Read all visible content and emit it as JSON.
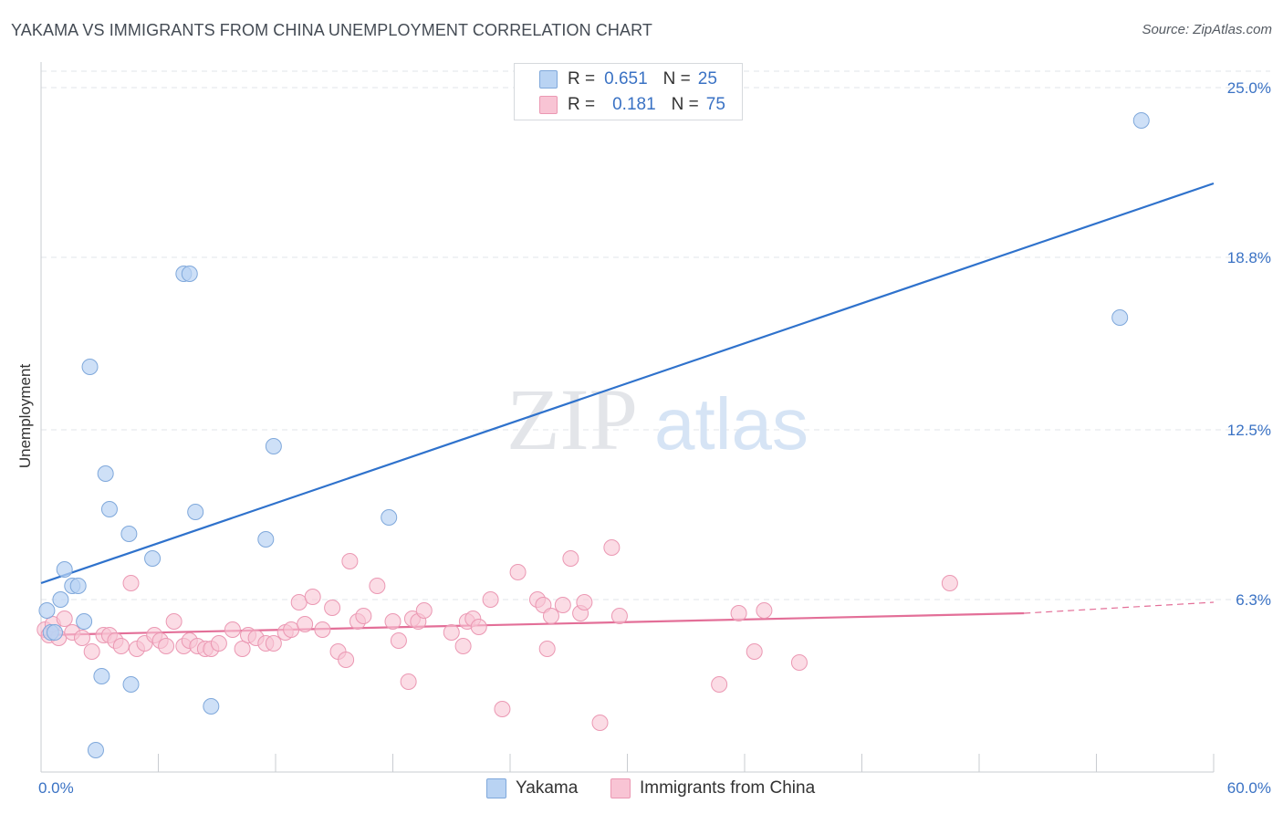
{
  "title": "YAKAMA VS IMMIGRANTS FROM CHINA UNEMPLOYMENT CORRELATION CHART",
  "source": "Source: ZipAtlas.com",
  "watermark": {
    "zip": "ZIP",
    "atlas": "atlas"
  },
  "legend": {
    "r_label": "R =",
    "n_label": "N =",
    "yakama": {
      "r": "0.651",
      "n": "25"
    },
    "china": {
      "r": "0.181",
      "n": "75"
    }
  },
  "colors": {
    "yakama_fill": "#b9d3f3",
    "yakama_stroke": "#7fa8db",
    "yakama_line": "#2f72cc",
    "china_fill": "#f8c4d4",
    "china_stroke": "#eb98b3",
    "china_line": "#e36f98",
    "axis_text": "#3a72c4",
    "grid": "#e2e4e8"
  },
  "chart_data": {
    "type": "scatter",
    "title": "YAKAMA VS IMMIGRANTS FROM CHINA UNEMPLOYMENT CORRELATION CHART",
    "xlabel": "",
    "ylabel": "Unemployment",
    "xlim": [
      0,
      60
    ],
    "ylim": [
      0,
      25.6
    ],
    "x_tick_labels": [
      "0.0%",
      "60.0%"
    ],
    "y_ticks": [
      6.3,
      12.5,
      18.8,
      25.0
    ],
    "y_tick_labels": [
      "6.3%",
      "12.5%",
      "18.8%",
      "25.0%"
    ],
    "grid": "horizontal dashed",
    "legend_position": "top-center and bottom",
    "series": [
      {
        "name": "Yakama",
        "color": "#b9d3f3",
        "points": [
          [
            0.3,
            5.9
          ],
          [
            0.5,
            5.1
          ],
          [
            0.7,
            5.1
          ],
          [
            1.0,
            6.3
          ],
          [
            1.2,
            7.4
          ],
          [
            1.6,
            6.8
          ],
          [
            1.9,
            6.8
          ],
          [
            2.2,
            5.5
          ],
          [
            2.5,
            14.8
          ],
          [
            2.8,
            0.8
          ],
          [
            3.1,
            3.5
          ],
          [
            3.3,
            10.9
          ],
          [
            3.5,
            9.6
          ],
          [
            4.5,
            8.7
          ],
          [
            4.6,
            3.2
          ],
          [
            5.7,
            7.8
          ],
          [
            7.3,
            18.2
          ],
          [
            7.6,
            18.2
          ],
          [
            7.9,
            9.5
          ],
          [
            8.7,
            2.4
          ],
          [
            11.5,
            8.5
          ],
          [
            11.9,
            11.9
          ],
          [
            17.8,
            9.3
          ],
          [
            55.2,
            16.6
          ],
          [
            56.3,
            23.8
          ]
        ],
        "trend": {
          "x": [
            0,
            60
          ],
          "y": [
            6.9,
            21.5
          ]
        }
      },
      {
        "name": "Immigrants from China",
        "color": "#f8c4d4",
        "points": [
          [
            0.2,
            5.2
          ],
          [
            0.4,
            5.0
          ],
          [
            0.6,
            5.4
          ],
          [
            0.9,
            4.9
          ],
          [
            1.2,
            5.6
          ],
          [
            1.6,
            5.1
          ],
          [
            2.1,
            4.9
          ],
          [
            2.6,
            4.4
          ],
          [
            3.2,
            5.0
          ],
          [
            3.5,
            5.0
          ],
          [
            3.8,
            4.8
          ],
          [
            4.1,
            4.6
          ],
          [
            4.6,
            6.9
          ],
          [
            4.9,
            4.5
          ],
          [
            5.3,
            4.7
          ],
          [
            5.8,
            5.0
          ],
          [
            6.1,
            4.8
          ],
          [
            6.4,
            4.6
          ],
          [
            6.8,
            5.5
          ],
          [
            7.3,
            4.6
          ],
          [
            7.6,
            4.8
          ],
          [
            8.0,
            4.6
          ],
          [
            8.4,
            4.5
          ],
          [
            8.7,
            4.5
          ],
          [
            9.1,
            4.7
          ],
          [
            9.8,
            5.2
          ],
          [
            10.3,
            4.5
          ],
          [
            10.6,
            5.0
          ],
          [
            11.0,
            4.9
          ],
          [
            11.5,
            4.7
          ],
          [
            11.9,
            4.7
          ],
          [
            12.5,
            5.1
          ],
          [
            12.8,
            5.2
          ],
          [
            13.2,
            6.2
          ],
          [
            13.5,
            5.4
          ],
          [
            13.9,
            6.4
          ],
          [
            14.4,
            5.2
          ],
          [
            14.9,
            6.0
          ],
          [
            15.2,
            4.4
          ],
          [
            15.6,
            4.1
          ],
          [
            15.8,
            7.7
          ],
          [
            16.2,
            5.5
          ],
          [
            16.5,
            5.7
          ],
          [
            17.2,
            6.8
          ],
          [
            18.0,
            5.5
          ],
          [
            18.3,
            4.8
          ],
          [
            18.8,
            3.3
          ],
          [
            19.0,
            5.6
          ],
          [
            19.3,
            5.5
          ],
          [
            19.6,
            5.9
          ],
          [
            21.0,
            5.1
          ],
          [
            21.6,
            4.6
          ],
          [
            21.8,
            5.5
          ],
          [
            22.1,
            5.6
          ],
          [
            22.4,
            5.3
          ],
          [
            23.0,
            6.3
          ],
          [
            23.6,
            2.3
          ],
          [
            24.4,
            7.3
          ],
          [
            25.4,
            6.3
          ],
          [
            25.7,
            6.1
          ],
          [
            25.9,
            4.5
          ],
          [
            26.1,
            5.7
          ],
          [
            26.7,
            6.1
          ],
          [
            27.1,
            7.8
          ],
          [
            27.6,
            5.8
          ],
          [
            27.8,
            6.2
          ],
          [
            28.6,
            1.8
          ],
          [
            29.2,
            8.2
          ],
          [
            29.6,
            5.7
          ],
          [
            34.7,
            3.2
          ],
          [
            35.7,
            5.8
          ],
          [
            36.5,
            4.4
          ],
          [
            37.0,
            5.9
          ],
          [
            38.8,
            4.0
          ],
          [
            46.5,
            6.9
          ]
        ],
        "trend": {
          "x": [
            0,
            50.3
          ],
          "y": [
            5.0,
            5.8
          ]
        },
        "trend_dashed": {
          "x": [
            50.3,
            60
          ],
          "y": [
            5.8,
            6.2
          ]
        }
      }
    ]
  }
}
